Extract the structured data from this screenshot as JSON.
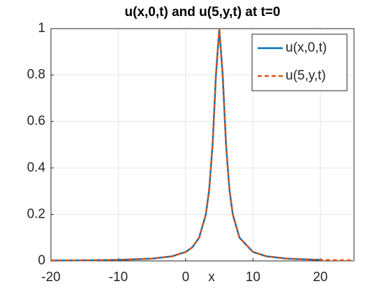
{
  "chart_data": {
    "type": "line",
    "title": "u(x,0,t) and u(5,y,t) at t=0",
    "x_label": "x",
    "xlim": [
      -20,
      25
    ],
    "xticks": [
      -20,
      -10,
      0,
      10,
      20
    ],
    "ylim": [
      0,
      1
    ],
    "yticks": [
      0,
      0.2,
      0.4,
      0.6,
      0.8,
      1
    ],
    "grid": true,
    "legend_position": "northeast",
    "series": [
      {
        "name": "u(x,0,t)",
        "color": "#0072bd",
        "style": "solid",
        "x": [
          -20,
          -15,
          -10,
          -5,
          -2,
          0,
          1,
          2,
          3,
          3.5,
          4,
          4.5,
          5,
          5.5,
          6,
          6.5,
          7,
          8,
          10,
          12,
          15,
          20
        ],
        "values": [
          0.0016,
          0.0025,
          0.0044,
          0.0099,
          0.02,
          0.0385,
          0.0588,
          0.1,
          0.2,
          0.3077,
          0.5,
          0.8,
          1,
          0.8,
          0.5,
          0.3077,
          0.2,
          0.1,
          0.0385,
          0.02,
          0.0099,
          0.0044
        ]
      },
      {
        "name": "u(5,y,t)",
        "color": "#d95319",
        "style": "dashed",
        "x": [
          -20,
          -15,
          -10,
          -5,
          -2,
          0,
          1,
          2,
          3,
          3.5,
          4,
          4.5,
          5,
          5.5,
          6,
          6.5,
          7,
          8,
          10,
          12,
          15,
          20,
          22,
          25
        ],
        "values": [
          0.0016,
          0.0025,
          0.0044,
          0.0099,
          0.02,
          0.0385,
          0.0588,
          0.1,
          0.2,
          0.3077,
          0.5,
          0.8,
          1,
          0.8,
          0.5,
          0.3077,
          0.2,
          0.1,
          0.0385,
          0.02,
          0.0099,
          0.0044,
          0.0034,
          0.0025
        ]
      }
    ]
  }
}
